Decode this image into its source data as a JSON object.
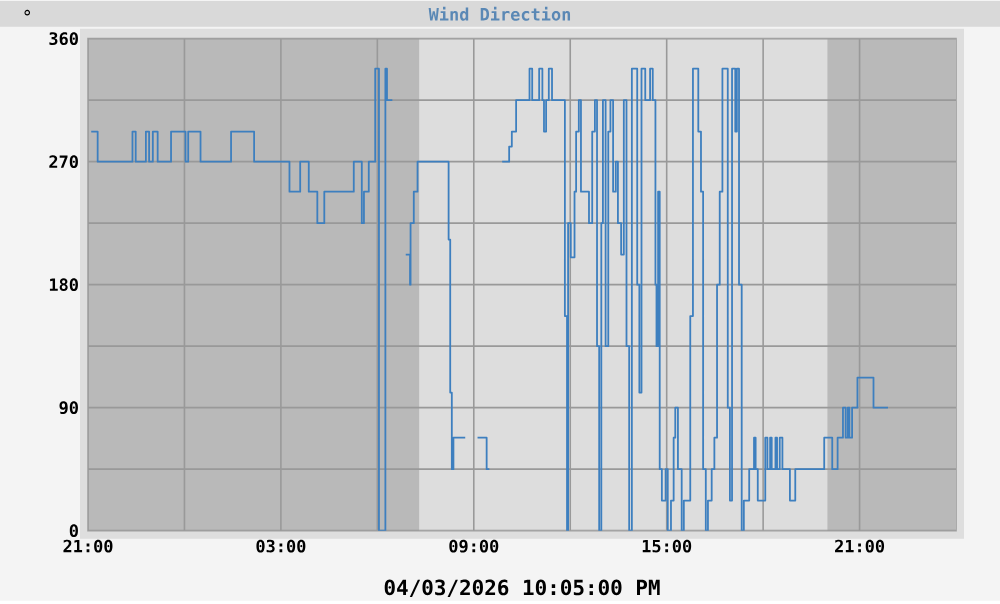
{
  "chart_data": {
    "type": "step",
    "title": "Wind Direction",
    "ylabel": "°",
    "xlabel": "04/03/2026 10:05:00 PM",
    "color": "#3d7fbf",
    "grid": true,
    "line_style": "solid",
    "xlim": [
      "2026-04-02T21:00",
      "2026-04-04T00:00"
    ],
    "xticks": [
      {
        "value": "2026-04-02T21:00",
        "label": "21:00"
      },
      {
        "value": "2026-04-03T00:00",
        "label": null
      },
      {
        "value": "2026-04-03T03:00",
        "label": "03:00"
      },
      {
        "value": "2026-04-03T06:00",
        "label": null
      },
      {
        "value": "2026-04-03T09:00",
        "label": "09:00"
      },
      {
        "value": "2026-04-03T12:00",
        "label": null
      },
      {
        "value": "2026-04-03T15:00",
        "label": "15:00"
      },
      {
        "value": "2026-04-03T18:00",
        "label": null
      },
      {
        "value": "2026-04-03T21:00",
        "label": "21:00"
      }
    ],
    "ylim": [
      0,
      360
    ],
    "yticks": [
      0,
      {
        "value": 45,
        "label": null
      },
      90,
      {
        "value": 135,
        "label": null
      },
      180,
      {
        "value": 225,
        "label": null
      },
      270,
      {
        "value": 315,
        "label": null
      },
      360
    ],
    "bands": [
      {
        "axis": "x",
        "from": "2026-04-03T07:18",
        "to": "2026-04-03T20:00",
        "color": "#dddddd"
      }
    ],
    "x": [
      "2026-04-02T21:06",
      "2026-04-02T21:18",
      "2026-04-02T22:23",
      "2026-04-02T22:29",
      "2026-04-02T22:48",
      "2026-04-02T22:54",
      "2026-04-02T23:01",
      "2026-04-02T23:10",
      "2026-04-02T23:35",
      "2026-04-03T00:02",
      "2026-04-03T00:07",
      "2026-04-03T00:30",
      "2026-04-03T01:27",
      "2026-04-03T02:10",
      "2026-04-03T03:16",
      "2026-04-03T03:36",
      "2026-04-03T03:52",
      "2026-04-03T04:08",
      "2026-04-03T04:21",
      "2026-04-03T05:16",
      "2026-04-03T05:31",
      "2026-04-03T05:35",
      "2026-04-03T05:44",
      "2026-04-03T05:56",
      "2026-04-03T06:03",
      "2026-04-03T06:15",
      "2026-04-03T06:18",
      "2026-04-03T06:28",
      "2026-04-03T06:36",
      "2026-04-03T06:53",
      "2026-04-03T07:01",
      "2026-04-03T07:02",
      "2026-04-03T07:08",
      "2026-04-03T07:15",
      "2026-04-03T08:13",
      "2026-04-03T08:16",
      "2026-04-03T08:19",
      "2026-04-03T08:22",
      "2026-04-03T08:27",
      "2026-04-03T08:44",
      "2026-04-03T08:54",
      "2026-04-03T09:07",
      "2026-04-03T09:24",
      "2026-04-03T09:29",
      "2026-04-03T09:42",
      "2026-04-03T09:53",
      "2026-04-03T10:06",
      "2026-04-03T10:11",
      "2026-04-03T10:19",
      "2026-04-03T10:44",
      "2026-04-03T10:49",
      "2026-04-03T11:02",
      "2026-04-03T11:08",
      "2026-04-03T11:11",
      "2026-04-03T11:15",
      "2026-04-03T11:20",
      "2026-04-03T11:26",
      "2026-04-03T11:50",
      "2026-04-03T11:54",
      "2026-04-03T11:56",
      "2026-04-03T12:01",
      "2026-04-03T12:08",
      "2026-04-03T12:11",
      "2026-04-03T12:16",
      "2026-04-03T12:20",
      "2026-04-03T12:29",
      "2026-04-03T12:35",
      "2026-04-03T12:41",
      "2026-04-03T12:46",
      "2026-04-03T12:50",
      "2026-04-03T12:54",
      "2026-04-03T12:58",
      "2026-04-03T13:01",
      "2026-04-03T13:06",
      "2026-04-03T13:11",
      "2026-04-03T13:15",
      "2026-04-03T13:20",
      "2026-04-03T13:25",
      "2026-04-03T13:29",
      "2026-04-03T13:35",
      "2026-04-03T13:40",
      "2026-04-03T13:45",
      "2026-04-03T13:50",
      "2026-04-03T13:55",
      "2026-04-03T14:00",
      "2026-04-03T14:05",
      "2026-04-03T14:09",
      "2026-04-03T14:13",
      "2026-04-03T14:20",
      "2026-04-03T14:29",
      "2026-04-03T14:34",
      "2026-04-03T14:39",
      "2026-04-03T14:41",
      "2026-04-03T14:44",
      "2026-04-03T14:47",
      "2026-04-03T14:51",
      "2026-04-03T14:58",
      "2026-04-03T15:02",
      "2026-04-03T15:08",
      "2026-04-03T15:13",
      "2026-04-03T15:16",
      "2026-04-03T15:21",
      "2026-04-03T15:28",
      "2026-04-03T15:32",
      "2026-04-03T15:38",
      "2026-04-03T15:44",
      "2026-04-03T15:49",
      "2026-04-03T15:54",
      "2026-04-03T15:59",
      "2026-04-03T16:04",
      "2026-04-03T16:08",
      "2026-04-03T16:13",
      "2026-04-03T16:17",
      "2026-04-03T16:24",
      "2026-04-03T16:29",
      "2026-04-03T16:34",
      "2026-04-03T16:39",
      "2026-04-03T16:44",
      "2026-04-03T16:49",
      "2026-04-03T16:54",
      "2026-04-03T16:58",
      "2026-04-03T17:02",
      "2026-04-03T17:08",
      "2026-04-03T17:11",
      "2026-04-03T17:15",
      "2026-04-03T17:20",
      "2026-04-03T17:24",
      "2026-04-03T17:29",
      "2026-04-03T17:34",
      "2026-04-03T17:39",
      "2026-04-03T17:43",
      "2026-04-03T17:46",
      "2026-04-03T17:50",
      "2026-04-03T18:01",
      "2026-04-03T18:04",
      "2026-04-03T18:08",
      "2026-04-03T18:13",
      "2026-04-03T18:16",
      "2026-04-03T18:23",
      "2026-04-03T18:26",
      "2026-04-03T18:31",
      "2026-04-03T18:36",
      "2026-04-03T18:45",
      "2026-04-03T18:50",
      "2026-04-03T18:55",
      "2026-04-03T19:00",
      "2026-04-03T19:50",
      "2026-04-03T19:54",
      "2026-04-03T20:02",
      "2026-04-03T20:09",
      "2026-04-03T20:14",
      "2026-04-03T20:19",
      "2026-04-03T20:24",
      "2026-04-03T20:29",
      "2026-04-03T20:34",
      "2026-04-03T20:38",
      "2026-04-03T20:41",
      "2026-04-03T20:46",
      "2026-04-03T20:53",
      "2026-04-03T20:56",
      "2026-04-03T21:21",
      "2026-04-03T21:26",
      "2026-04-03T21:53"
    ],
    "values": [
      292,
      270,
      292,
      270,
      292,
      270,
      292,
      270,
      292,
      270,
      292,
      270,
      292,
      270,
      248,
      270,
      248,
      225,
      248,
      270,
      225,
      248,
      270,
      338,
      0,
      338,
      315,
      315,
      null,
      202,
      180,
      225,
      248,
      270,
      213,
      101,
      45,
      68,
      68,
      68,
      null,
      68,
      45,
      45,
      null,
      270,
      281,
      292,
      315,
      338,
      315,
      338,
      315,
      292,
      315,
      338,
      315,
      157,
      0,
      225,
      200,
      248,
      292,
      315,
      248,
      248,
      225,
      292,
      315,
      135,
      0,
      225,
      315,
      135,
      292,
      315,
      248,
      270,
      225,
      202,
      315,
      135,
      0,
      338,
      338,
      180,
      101,
      338,
      315,
      338,
      315,
      180,
      135,
      248,
      45,
      22,
      45,
      0,
      22,
      68,
      90,
      45,
      0,
      22,
      22,
      157,
      338,
      338,
      292,
      248,
      45,
      0,
      22,
      45,
      68,
      180,
      248,
      338,
      338,
      90,
      22,
      338,
      292,
      338,
      180,
      0,
      22,
      22,
      45,
      45,
      68,
      45,
      22,
      22,
      68,
      45,
      68,
      45,
      68,
      45,
      68,
      45,
      45,
      22,
      22,
      45,
      45,
      68,
      68,
      45,
      45,
      68,
      68,
      90,
      68,
      90,
      68,
      90,
      90,
      112,
      112,
      90,
      90
    ]
  }
}
